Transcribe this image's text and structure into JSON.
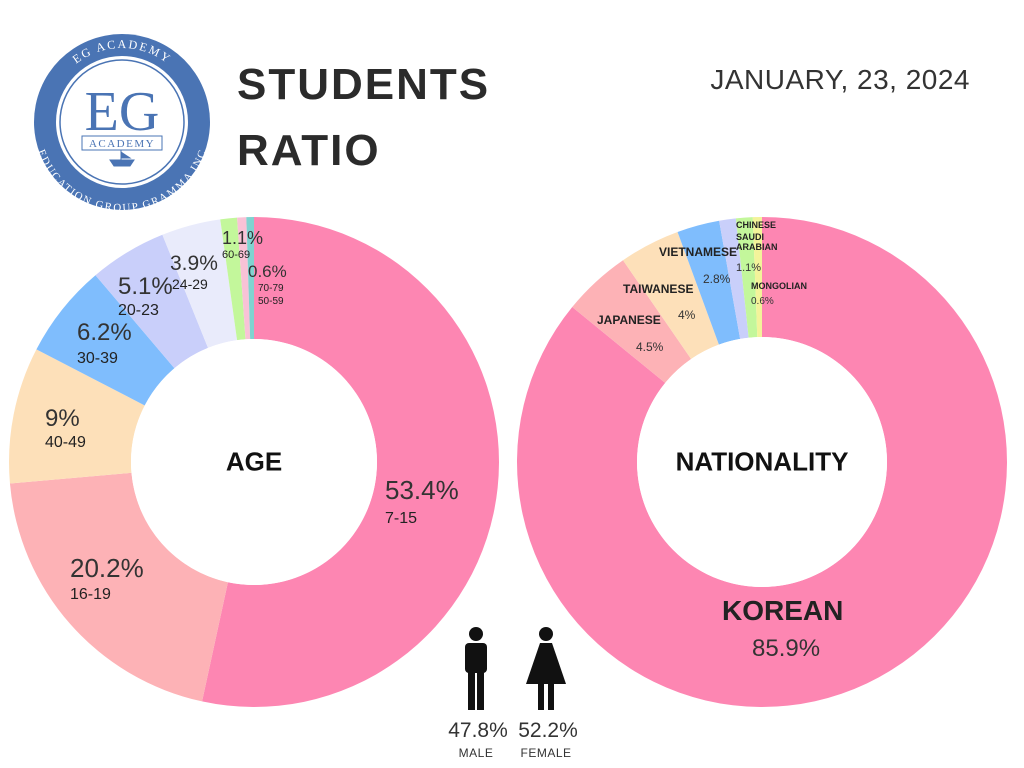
{
  "header": {
    "title": "STUDENTS RATIO",
    "date": "JANUARY, 23, 2024",
    "logo": {
      "top_text": "EG ACADEMY",
      "initials": "EG",
      "name": "ACADEMY",
      "bottom_text": "EDUCATION GROUP GRAMMA INC"
    }
  },
  "chart_data": [
    {
      "type": "pie",
      "center_label": "AGE",
      "categories": [
        "7-15",
        "16-19",
        "40-49",
        "30-39",
        "20-23",
        "24-29",
        "60-69",
        "70-79",
        "50-59"
      ],
      "values": [
        53.4,
        20.2,
        9,
        6.2,
        5.1,
        3.9,
        1.1,
        0.6,
        0.5
      ],
      "value_labels": [
        "53.4%",
        "20.2%",
        "9%",
        "6.2%",
        "5.1%",
        "3.9%",
        "1.1%",
        "0.6%",
        null
      ],
      "colors": [
        "#fd86b2",
        "#fdb2b6",
        "#fde0b9",
        "#7fbdfd",
        "#c9cffa",
        "#e9ebfb",
        "#c3f79b",
        "#f9c2d6",
        "#7fd3d0"
      ]
    },
    {
      "type": "pie",
      "center_label": "NATIONALITY",
      "categories": [
        "KOREAN",
        "JAPANESE",
        "TAIWANESE",
        "VIETNAMESE",
        "CHINESE",
        "SAUDI ARABIAN",
        "MONGOLIAN"
      ],
      "values": [
        85.9,
        4.5,
        4,
        2.8,
        1.1,
        1.1,
        0.6
      ],
      "value_labels": [
        "85.9%",
        "4.5%",
        "4%",
        "2.8%",
        null,
        "1.1%",
        "0.6%"
      ],
      "colors": [
        "#fd86b2",
        "#fdb2b6",
        "#fde0b9",
        "#7fbdfd",
        "#c9cffa",
        "#c3f79b",
        "#f3f39a"
      ]
    }
  ],
  "gender": {
    "categories": [
      "MALE",
      "FEMALE"
    ],
    "values": [
      47.8,
      52.2
    ],
    "value_labels": [
      "47.8%",
      "52.2%"
    ]
  }
}
